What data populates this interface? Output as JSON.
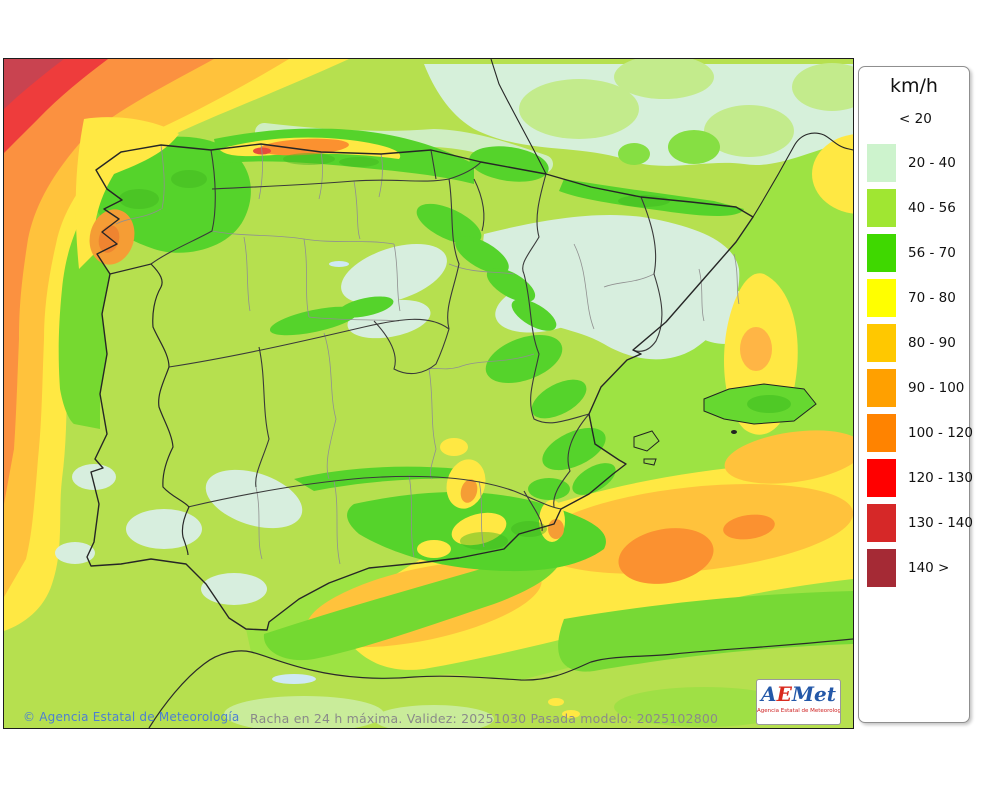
{
  "map": {
    "caption": "Racha en 24 h máxima. Validez: 20251030 Pasada modelo: 2025102800",
    "copyright": "© Agencia Estatal de Meteorología"
  },
  "logo": {
    "part_a": "A",
    "part_e": "E",
    "part_met": "Met",
    "subtitle": "Agencia Estatal de Meteorología"
  },
  "legend": {
    "title": "km/h",
    "first_label": "< 20",
    "items": [
      {
        "label": "20 - 40",
        "color": "#cdf3cd"
      },
      {
        "label": "40 - 56",
        "color": "#a0e632"
      },
      {
        "label": "56 - 70",
        "color": "#3fd800"
      },
      {
        "label": "70 - 80",
        "color": "#ffff00"
      },
      {
        "label": "80 - 90",
        "color": "#ffc800"
      },
      {
        "label": "90 - 100",
        "color": "#ffa000"
      },
      {
        "label": "100 - 120",
        "color": "#ff8300"
      },
      {
        "label": "120 - 130",
        "color": "#ff0000"
      },
      {
        "label": "130 - 140",
        "color": "#d62828"
      },
      {
        "label": "140 >",
        "color": "#a52a35"
      }
    ]
  }
}
